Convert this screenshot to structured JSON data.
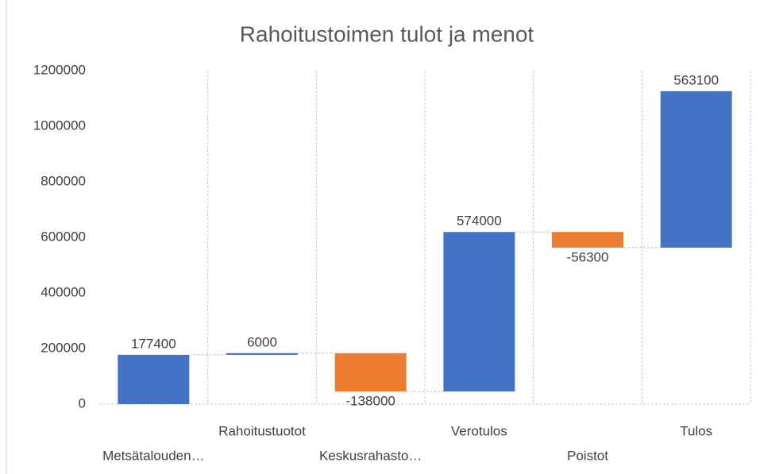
{
  "chart_data": {
    "type": "waterfall",
    "title": "Rahoitustoimen tulot ja menot",
    "categories": [
      "Metsätalouden…",
      "Rahoitustuotot",
      "Keskusrahasto…",
      "Verotulos",
      "Poistot",
      "Tulos"
    ],
    "values": [
      177400,
      6000,
      -138000,
      574000,
      -56300,
      563100
    ],
    "positive_color": "#4472c4",
    "negative_color": "#ed7d31",
    "ylim": [
      0,
      1200000
    ],
    "yticks": [
      0,
      200000,
      400000,
      600000,
      800000,
      1000000,
      1200000
    ],
    "xgrid": true
  }
}
